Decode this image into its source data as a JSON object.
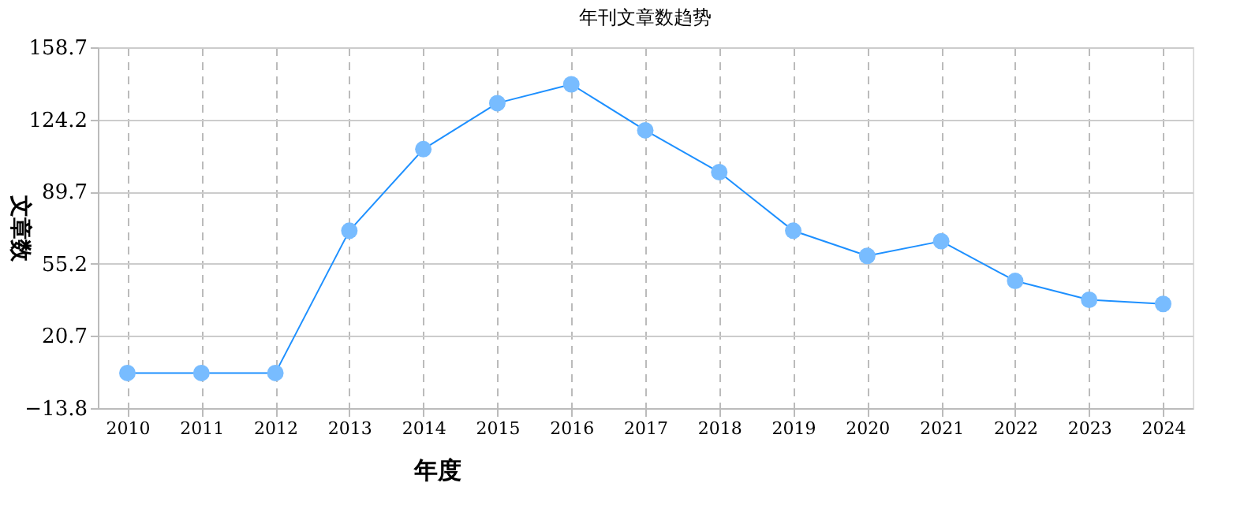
{
  "chart_data": {
    "type": "line",
    "title": "年刊文章数趋势",
    "xlabel": "年度",
    "ylabel": "文章数",
    "categories": [
      "2010",
      "2011",
      "2012",
      "2013",
      "2014",
      "2015",
      "2016",
      "2017",
      "2018",
      "2019",
      "2020",
      "2021",
      "2022",
      "2023",
      "2024"
    ],
    "series": [
      {
        "color": "#1e90ff",
        "values": [
          3,
          3,
          3,
          71,
          110,
          132,
          141,
          119,
          99,
          71,
          59,
          66,
          47,
          38,
          36
        ]
      }
    ],
    "ylim": [
      -13.8,
      158.7
    ],
    "yticks": [
      -13.8,
      20.7,
      55.2,
      89.7,
      124.2,
      158.7
    ],
    "grid": true,
    "marker": "circle",
    "line_style": "solid"
  }
}
